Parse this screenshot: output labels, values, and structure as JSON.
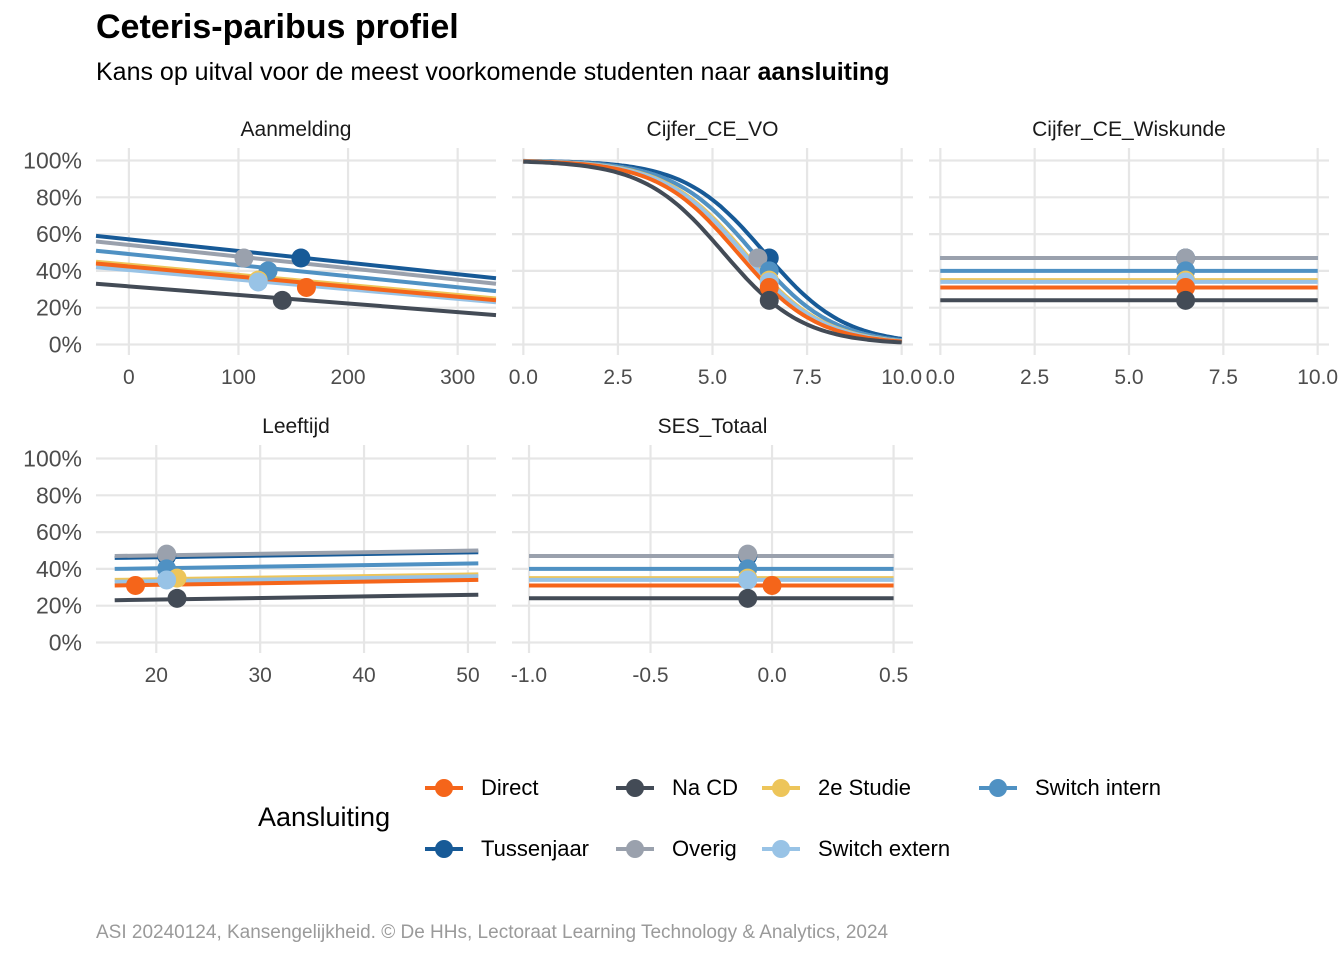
{
  "title": "Ceteris-paribus profiel",
  "subtitle_prefix": "Kans op uitval voor de meest voorkomende studenten naar ",
  "subtitle_bold": "aansluiting",
  "caption": "ASI 20240124, Kansengelijkheid. © De HHs, Lectoraat Learning Technology & Analytics, 2024",
  "legend": {
    "title": "Aansluiting",
    "items": [
      {
        "label": "Direct",
        "color": "#F5651A"
      },
      {
        "label": "Na CD",
        "color": "#434B56"
      },
      {
        "label": "2e Studie",
        "color": "#EDC55A"
      },
      {
        "label": "Switch intern",
        "color": "#4F91C3"
      },
      {
        "label": "Tussenjaar",
        "color": "#175A97"
      },
      {
        "label": "Overig",
        "color": "#9AA1AD"
      },
      {
        "label": "Switch extern",
        "color": "#98C3E6"
      }
    ]
  },
  "chart_data": {
    "type": "line",
    "y_axis": {
      "range": [
        0,
        1
      ],
      "ticks": [
        0,
        0.2,
        0.4,
        0.6,
        0.8,
        1.0
      ],
      "tick_labels": [
        "0%",
        "20%",
        "40%",
        "60%",
        "80%",
        "100%"
      ]
    },
    "grid": true,
    "legend_position": "bottom",
    "series_order": [
      "Direct",
      "Na CD",
      "2e Studie",
      "Switch intern",
      "Tussenjaar",
      "Overig",
      "Switch extern"
    ],
    "draw_order": [
      "Tussenjaar",
      "Overig",
      "Switch intern",
      "2e Studie",
      "Switch extern",
      "Direct",
      "Na CD"
    ],
    "panels": [
      {
        "title": "Aanmelding",
        "xlim": [
          -30,
          335
        ],
        "ticks": [
          0,
          100,
          200,
          300
        ],
        "tick_labels": [
          "0",
          "100",
          "200",
          "300"
        ],
        "series": [
          {
            "name": "Tussenjaar",
            "line": [
              [
                -30,
                0.59
              ],
              [
                335,
                0.36
              ]
            ],
            "point": [
              157,
              0.47
            ]
          },
          {
            "name": "Overig",
            "line": [
              [
                -30,
                0.56
              ],
              [
                335,
                0.33
              ]
            ],
            "point": [
              105,
              0.47
            ]
          },
          {
            "name": "Switch intern",
            "line": [
              [
                -30,
                0.51
              ],
              [
                335,
                0.29
              ]
            ],
            "point": [
              127,
              0.4
            ]
          },
          {
            "name": "2e Studie",
            "line": [
              [
                -30,
                0.45
              ],
              [
                335,
                0.25
              ]
            ],
            "point": [
              118,
              0.35
            ]
          },
          {
            "name": "Switch extern",
            "line": [
              [
                -30,
                0.42
              ],
              [
                335,
                0.23
              ]
            ],
            "point": [
              118,
              0.34
            ]
          },
          {
            "name": "Direct",
            "line": [
              [
                -30,
                0.44
              ],
              [
                335,
                0.24
              ]
            ],
            "point": [
              162,
              0.31
            ]
          },
          {
            "name": "Na CD",
            "line": [
              [
                -30,
                0.33
              ],
              [
                335,
                0.16
              ]
            ],
            "point": [
              140,
              0.24
            ]
          }
        ]
      },
      {
        "title": "Cijfer_CE_VO",
        "xlim": [
          -0.3,
          10.3
        ],
        "ticks": [
          0,
          2.5,
          5,
          7.5,
          10
        ],
        "tick_labels": [
          "0.0",
          "2.5",
          "5.0",
          "7.5",
          "10.0"
        ],
        "series": [
          {
            "name": "Tussenjaar",
            "sigmoid": {
              "p_at": [
                6.5,
                0.47
              ],
              "slope": 0.95
            },
            "point": [
              6.5,
              0.47
            ]
          },
          {
            "name": "Overig",
            "sigmoid": {
              "p_at": [
                6.2,
                0.47
              ],
              "slope": 0.95
            },
            "point": [
              6.2,
              0.47
            ]
          },
          {
            "name": "Switch intern",
            "sigmoid": {
              "p_at": [
                6.5,
                0.4
              ],
              "slope": 0.95
            },
            "point": [
              6.5,
              0.4
            ]
          },
          {
            "name": "2e Studie",
            "sigmoid": {
              "p_at": [
                6.5,
                0.35
              ],
              "slope": 0.95
            },
            "point": [
              6.5,
              0.35
            ]
          },
          {
            "name": "Switch extern",
            "sigmoid": {
              "p_at": [
                6.5,
                0.34
              ],
              "slope": 0.95
            },
            "point": [
              6.5,
              0.34
            ]
          },
          {
            "name": "Direct",
            "sigmoid": {
              "p_at": [
                6.5,
                0.31
              ],
              "slope": 0.95
            },
            "point": [
              6.5,
              0.31
            ]
          },
          {
            "name": "Na CD",
            "sigmoid": {
              "p_at": [
                6.5,
                0.24
              ],
              "slope": 0.95
            },
            "point": [
              6.5,
              0.24
            ]
          }
        ]
      },
      {
        "title": "Cijfer_CE_Wiskunde",
        "xlim": [
          -0.3,
          10.3
        ],
        "ticks": [
          0,
          2.5,
          5,
          7.5,
          10
        ],
        "tick_labels": [
          "0.0",
          "2.5",
          "5.0",
          "7.5",
          "10.0"
        ],
        "series": [
          {
            "name": "Tussenjaar",
            "line": [
              [
                0,
                0.47
              ],
              [
                10,
                0.47
              ]
            ],
            "point": [
              6.5,
              0.47
            ]
          },
          {
            "name": "Overig",
            "line": [
              [
                0,
                0.47
              ],
              [
                10,
                0.47
              ]
            ],
            "point": [
              6.5,
              0.47
            ]
          },
          {
            "name": "Switch intern",
            "line": [
              [
                0,
                0.4
              ],
              [
                10,
                0.4
              ]
            ],
            "point": [
              6.5,
              0.4
            ]
          },
          {
            "name": "2e Studie",
            "line": [
              [
                0,
                0.35
              ],
              [
                10,
                0.35
              ]
            ],
            "point": [
              6.5,
              0.35
            ]
          },
          {
            "name": "Switch extern",
            "line": [
              [
                0,
                0.34
              ],
              [
                10,
                0.34
              ]
            ],
            "point": [
              6.5,
              0.34
            ]
          },
          {
            "name": "Direct",
            "line": [
              [
                0,
                0.31
              ],
              [
                10,
                0.31
              ]
            ],
            "point": [
              6.5,
              0.31
            ]
          },
          {
            "name": "Na CD",
            "line": [
              [
                0,
                0.24
              ],
              [
                10,
                0.24
              ]
            ],
            "point": [
              6.5,
              0.24
            ]
          }
        ]
      },
      {
        "title": "Leeftijd",
        "xlim": [
          14.2,
          52.7
        ],
        "ticks": [
          20,
          30,
          40,
          50
        ],
        "tick_labels": [
          "20",
          "30",
          "40",
          "50"
        ],
        "series": [
          {
            "name": "Tussenjaar",
            "line": [
              [
                16,
                0.46
              ],
              [
                51,
                0.49
              ]
            ],
            "point": [
              21,
              0.47
            ]
          },
          {
            "name": "Overig",
            "line": [
              [
                16,
                0.47
              ],
              [
                51,
                0.5
              ]
            ],
            "point": [
              21,
              0.48
            ]
          },
          {
            "name": "Switch intern",
            "line": [
              [
                16,
                0.4
              ],
              [
                51,
                0.43
              ]
            ],
            "point": [
              21,
              0.4
            ]
          },
          {
            "name": "2e Studie",
            "line": [
              [
                16,
                0.34
              ],
              [
                51,
                0.37
              ]
            ],
            "point": [
              22,
              0.35
            ]
          },
          {
            "name": "Switch extern",
            "line": [
              [
                16,
                0.33
              ],
              [
                51,
                0.36
              ]
            ],
            "point": [
              21,
              0.34
            ]
          },
          {
            "name": "Direct",
            "line": [
              [
                16,
                0.31
              ],
              [
                51,
                0.34
              ]
            ],
            "point": [
              18,
              0.31
            ]
          },
          {
            "name": "Na CD",
            "line": [
              [
                16,
                0.23
              ],
              [
                51,
                0.26
              ]
            ],
            "point": [
              22,
              0.24
            ]
          }
        ]
      },
      {
        "title": "SES_Totaal",
        "xlim": [
          -1.07,
          0.58
        ],
        "ticks": [
          -1.0,
          -0.5,
          0.0,
          0.5
        ],
        "tick_labels": [
          "-1.0",
          "-0.5",
          "0.0",
          "0.5"
        ],
        "series": [
          {
            "name": "Tussenjaar",
            "line": [
              [
                -1.0,
                0.47
              ],
              [
                0.5,
                0.47
              ]
            ],
            "point": [
              -0.1,
              0.47
            ]
          },
          {
            "name": "Overig",
            "line": [
              [
                -1.0,
                0.47
              ],
              [
                0.5,
                0.47
              ]
            ],
            "point": [
              -0.1,
              0.48
            ]
          },
          {
            "name": "Switch intern",
            "line": [
              [
                -1.0,
                0.4
              ],
              [
                0.5,
                0.4
              ]
            ],
            "point": [
              -0.1,
              0.4
            ]
          },
          {
            "name": "2e Studie",
            "line": [
              [
                -1.0,
                0.35
              ],
              [
                0.5,
                0.35
              ]
            ],
            "point": [
              -0.1,
              0.35
            ]
          },
          {
            "name": "Switch extern",
            "line": [
              [
                -1.0,
                0.34
              ],
              [
                0.5,
                0.34
              ]
            ],
            "point": [
              -0.1,
              0.34
            ]
          },
          {
            "name": "Direct",
            "line": [
              [
                -1.0,
                0.31
              ],
              [
                0.5,
                0.31
              ]
            ],
            "point": [
              0.0,
              0.31
            ]
          },
          {
            "name": "Na CD",
            "line": [
              [
                -1.0,
                0.24
              ],
              [
                0.5,
                0.24
              ]
            ],
            "point": [
              -0.1,
              0.24
            ]
          }
        ]
      }
    ]
  }
}
